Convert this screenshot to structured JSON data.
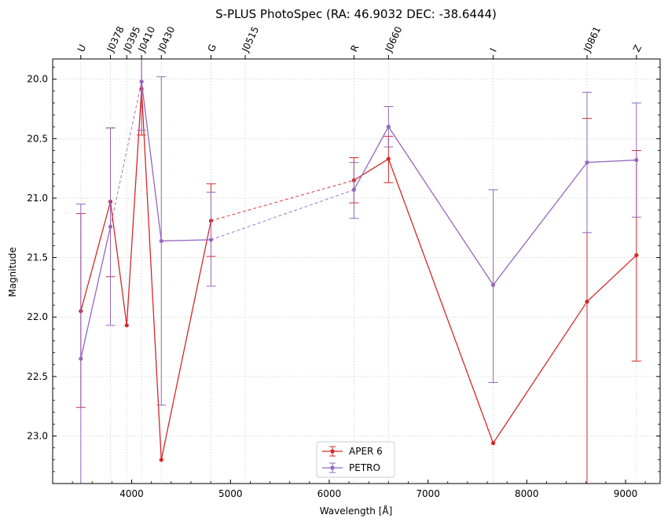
{
  "chart_data": {
    "type": "line",
    "title": "S-PLUS PhotoSpec (RA: 46.9032 DEC: -38.6444)",
    "xlabel": "Wavelength [Å]",
    "ylabel": "Magnitude",
    "xlim": [
      3200,
      9350
    ],
    "ylim": [
      23.4,
      19.83
    ],
    "y_inverted": true,
    "grid": true,
    "legend_position": "lower-center",
    "xticks": [
      4000,
      5000,
      6000,
      7000,
      8000,
      9000
    ],
    "xtick_labels": [
      "4000",
      "5000",
      "6000",
      "7000",
      "8000",
      "9000"
    ],
    "yticks": [
      20.0,
      20.5,
      21.0,
      21.5,
      22.0,
      22.5,
      23.0
    ],
    "ytick_labels": [
      "20.0",
      "20.5",
      "21.0",
      "21.5",
      "22.0",
      "22.5",
      "23.0"
    ],
    "filters": [
      {
        "name": "U",
        "wavelength": 3485
      },
      {
        "name": "J0378",
        "wavelength": 3785
      },
      {
        "name": "J0395",
        "wavelength": 3950
      },
      {
        "name": "J0410",
        "wavelength": 4100
      },
      {
        "name": "J0430",
        "wavelength": 4300
      },
      {
        "name": "G",
        "wavelength": 4803
      },
      {
        "name": "J0515",
        "wavelength": 5150
      },
      {
        "name": "R",
        "wavelength": 6250
      },
      {
        "name": "J0660",
        "wavelength": 6600
      },
      {
        "name": "I",
        "wavelength": 7660
      },
      {
        "name": "J0861",
        "wavelength": 8610
      },
      {
        "name": "Z",
        "wavelength": 9110
      }
    ],
    "series": [
      {
        "name": "APER 6",
        "color": "#d62728",
        "points": [
          {
            "x": 3485,
            "y": 21.95,
            "err_lo": 21.13,
            "err_hi": 22.76
          },
          {
            "x": 3785,
            "y": 21.03,
            "err_lo": 20.41,
            "err_hi": 21.66
          },
          {
            "x": 3950,
            "y": 22.07,
            "err_lo": null,
            "err_hi": null
          },
          {
            "x": 4100,
            "y": 20.08,
            "err_lo": 19.83,
            "err_hi": 20.47
          },
          {
            "x": 4300,
            "y": 23.2,
            "err_lo": null,
            "err_hi": null
          },
          {
            "x": 4803,
            "y": 21.19,
            "err_lo": 20.88,
            "err_hi": 21.49
          },
          {
            "x": 6250,
            "y": 20.85,
            "err_lo": 20.66,
            "err_hi": 21.04
          },
          {
            "x": 6600,
            "y": 20.67,
            "err_lo": 20.48,
            "err_hi": 20.87
          },
          {
            "x": 7660,
            "y": 23.06,
            "err_lo": null,
            "err_hi": null
          },
          {
            "x": 8610,
            "y": 21.87,
            "err_lo": 20.33,
            "err_hi": 23.4
          },
          {
            "x": 9110,
            "y": 21.48,
            "err_lo": 20.6,
            "err_hi": 22.37
          }
        ],
        "solid_segments": [
          [
            0,
            1
          ],
          [
            1,
            2
          ],
          [
            2,
            3
          ],
          [
            3,
            4
          ],
          [
            4,
            5
          ],
          [
            6,
            7
          ],
          [
            7,
            8
          ],
          [
            8,
            9
          ],
          [
            9,
            10
          ]
        ],
        "dashed_segments": [
          [
            5,
            6
          ]
        ]
      },
      {
        "name": "PETRO",
        "color": "#9467bd",
        "points": [
          {
            "x": 3485,
            "y": 22.35,
            "err_lo": 21.05,
            "err_hi": 23.4
          },
          {
            "x": 3785,
            "y": 21.24,
            "err_lo": 20.41,
            "err_hi": 22.07
          },
          {
            "x": 4100,
            "y": 20.02,
            "err_lo": 19.83,
            "err_hi": 20.43
          },
          {
            "x": 4300,
            "y": 21.36,
            "err_lo": 19.98,
            "err_hi": 22.74
          },
          {
            "x": 4803,
            "y": 21.35,
            "err_lo": 20.95,
            "err_hi": 21.74
          },
          {
            "x": 6250,
            "y": 20.93,
            "err_lo": 20.7,
            "err_hi": 21.17
          },
          {
            "x": 6600,
            "y": 20.4,
            "err_lo": 20.23,
            "err_hi": 20.57
          },
          {
            "x": 7660,
            "y": 21.73,
            "err_lo": 20.93,
            "err_hi": 22.55
          },
          {
            "x": 8610,
            "y": 20.7,
            "err_lo": 20.11,
            "err_hi": 21.29
          },
          {
            "x": 9110,
            "y": 20.68,
            "err_lo": 20.2,
            "err_hi": 21.16
          }
        ],
        "solid_segments": [
          [
            0,
            1
          ],
          [
            2,
            3
          ],
          [
            3,
            4
          ],
          [
            5,
            6
          ],
          [
            6,
            7
          ],
          [
            7,
            8
          ],
          [
            8,
            9
          ]
        ],
        "dashed_segments": [
          [
            1,
            2
          ],
          [
            4,
            5
          ]
        ]
      }
    ]
  }
}
